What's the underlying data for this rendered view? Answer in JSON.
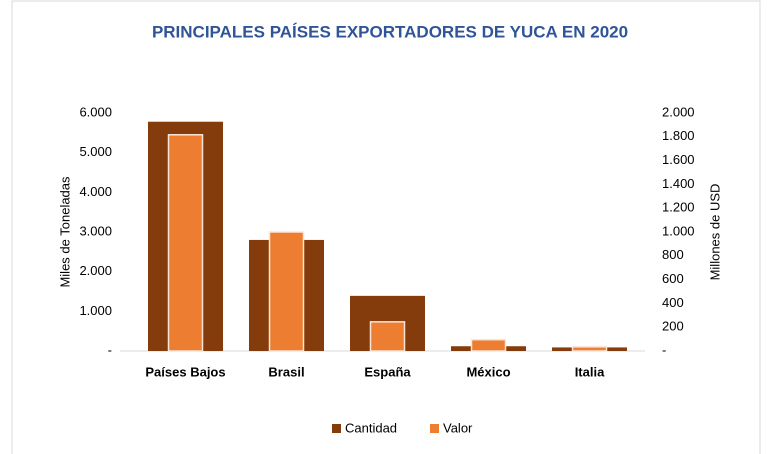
{
  "chart_data": {
    "type": "bar",
    "title": "PRINCIPALES PAÍSES EXPORTADORES DE YUCA EN 2020",
    "ylabel": "Miles de Toneladas",
    "y2label": "Millones de USD",
    "categories": [
      "Países Bajos",
      "Brasil",
      "España",
      "México",
      "Italia"
    ],
    "series": [
      {
        "name": "Cantidad",
        "color": "#843c0c",
        "values": [
          5780,
          2800,
          1390,
          120,
          90
        ]
      },
      {
        "name": "Valor",
        "color": "#ed7d31",
        "axis": "y2",
        "values": [
          1817,
          1000,
          245,
          95,
          35
        ]
      }
    ],
    "ylim": [
      0,
      6000
    ],
    "yticks": [
      {
        "value": 0,
        "label": "-"
      },
      {
        "value": 1000,
        "label": "1.000"
      },
      {
        "value": 2000,
        "label": "2.000"
      },
      {
        "value": 3000,
        "label": "3.000"
      },
      {
        "value": 4000,
        "label": "4.000"
      },
      {
        "value": 5000,
        "label": "5.000"
      },
      {
        "value": 6000,
        "label": "6.000"
      }
    ],
    "y2lim": [
      0,
      2000
    ],
    "y2ticks": [
      {
        "value": 0,
        "label": "-"
      },
      200,
      400,
      600,
      800,
      {
        "value": 1000,
        "label": "1.000"
      },
      {
        "value": 1200,
        "label": "1.200"
      },
      {
        "value": 1400,
        "label": "1.400"
      },
      {
        "value": 1600,
        "label": "1.600"
      },
      {
        "value": 1800,
        "label": "1.800"
      },
      {
        "value": 2000,
        "label": "2.000"
      }
    ],
    "legend": "bottom"
  }
}
